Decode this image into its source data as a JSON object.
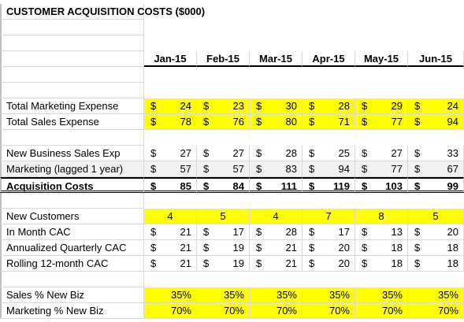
{
  "title": "CUSTOMER ACQUISITION COSTS ($000)",
  "months": [
    "Jan-15",
    "Feb-15",
    "Mar-15",
    "Apr-15",
    "May-15",
    "Jun-15"
  ],
  "colors": {
    "highlight": "#ffff00",
    "gridline": "#d9d9d9",
    "shade": "#f2f2f2"
  },
  "rows": [
    {
      "label": "Total Marketing Expense",
      "values": [
        "24",
        "23",
        "30",
        "28",
        "29",
        "24"
      ],
      "dollar": true,
      "yellow": true,
      "top": 125
    },
    {
      "label": "Total Sales Expense",
      "values": [
        "78",
        "76",
        "80",
        "71",
        "77",
        "94"
      ],
      "dollar": true,
      "yellow": true,
      "top": 145
    },
    {
      "label": "New Business Sales Exp",
      "values": [
        "27",
        "27",
        "28",
        "25",
        "27",
        "33"
      ],
      "dollar": true,
      "top": 185
    },
    {
      "label": "Marketing (lagged 1 year)",
      "values": [
        "57",
        "57",
        "83",
        "94",
        "77",
        "67"
      ],
      "dollar": true,
      "shade": true,
      "top": 205
    },
    {
      "label": "Acquisition Costs",
      "values": [
        "85",
        "84",
        "111",
        "119",
        "103",
        "99"
      ],
      "dollar": true,
      "bold": true,
      "total": true,
      "top": 225
    },
    {
      "label": "New Customers",
      "values": [
        "4",
        "5",
        "4",
        "7",
        "8",
        "5"
      ],
      "dollar": false,
      "yellow": true,
      "centered": true,
      "top": 265
    },
    {
      "label": "In Month CAC",
      "values": [
        "21",
        "17",
        "28",
        "17",
        "13",
        "20"
      ],
      "dollar": true,
      "top": 285
    },
    {
      "label": "Annualized Quarterly CAC",
      "values": [
        "21",
        "19",
        "21",
        "20",
        "18",
        "18"
      ],
      "dollar": true,
      "top": 305
    },
    {
      "label": "Rolling 12-month CAC",
      "values": [
        "21",
        "19",
        "21",
        "20",
        "18",
        "18"
      ],
      "dollar": true,
      "top": 325
    },
    {
      "label": "Sales % New Biz",
      "values": [
        "35%",
        "35%",
        "35%",
        "35%",
        "35%",
        "35%"
      ],
      "dollar": false,
      "yellow": true,
      "top": 365
    },
    {
      "label": "Marketing % New Biz",
      "values": [
        "70%",
        "70%",
        "70%",
        "70%",
        "70%",
        "70%"
      ],
      "dollar": false,
      "yellow": true,
      "top": 385
    }
  ]
}
